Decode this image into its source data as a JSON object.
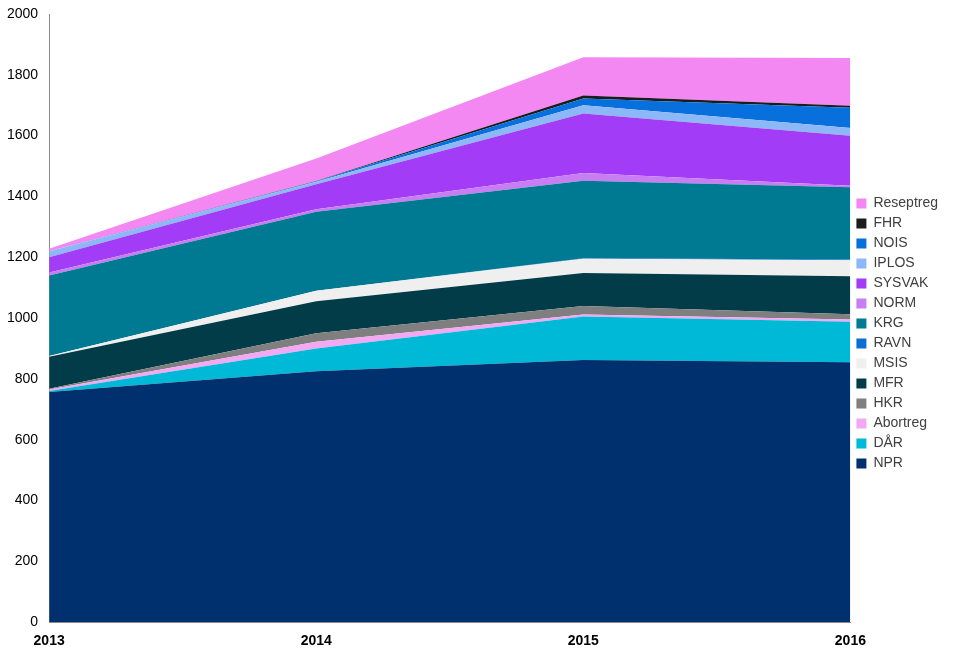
{
  "chart_data": {
    "type": "area",
    "stacked": true,
    "grid": false,
    "legend": "right",
    "categories": [
      "2013",
      "2014",
      "2015",
      "2016"
    ],
    "ylim": [
      0,
      2000
    ],
    "yticks": [
      0,
      200,
      400,
      600,
      800,
      1000,
      1200,
      1400,
      1600,
      1800,
      2000
    ],
    "series": [
      {
        "name": "NPR",
        "color": "#00306e",
        "values": [
          757,
          825,
          862,
          855
        ]
      },
      {
        "name": "DÅR",
        "color": "#00b9d6",
        "values": [
          3,
          75,
          143,
          133
        ]
      },
      {
        "name": "Abortreg",
        "color": "#f3a8f3",
        "values": [
          5,
          22,
          7,
          7
        ]
      },
      {
        "name": "HKR",
        "color": "#7f7f7f",
        "values": [
          3,
          28,
          28,
          18
        ]
      },
      {
        "name": "MFR",
        "color": "#033c49",
        "values": [
          105,
          105,
          108,
          125
        ]
      },
      {
        "name": "MSIS",
        "color": "#efefef",
        "values": [
          2,
          35,
          47,
          52
        ]
      },
      {
        "name": "RAVN",
        "color": "#0a6fd0",
        "values": [
          0,
          0,
          2,
          3
        ]
      },
      {
        "name": "KRG",
        "color": "#007a92",
        "values": [
          265,
          260,
          255,
          237
        ]
      },
      {
        "name": "NORM",
        "color": "#c87ef2",
        "values": [
          10,
          8,
          25,
          5
        ]
      },
      {
        "name": "SYSVAK",
        "color": "#a23cf7",
        "values": [
          50,
          82,
          196,
          165
        ]
      },
      {
        "name": "IPLOS",
        "color": "#8db8f7",
        "values": [
          20,
          8,
          27,
          25
        ]
      },
      {
        "name": "NOIS",
        "color": "#0870dc",
        "values": [
          0,
          2,
          22,
          67
        ]
      },
      {
        "name": "FHR",
        "color": "#1c1c1c",
        "values": [
          0,
          1,
          10,
          6
        ]
      },
      {
        "name": "Reseptreg",
        "color": "#f488f2",
        "values": [
          8,
          74,
          126,
          157
        ]
      }
    ]
  }
}
